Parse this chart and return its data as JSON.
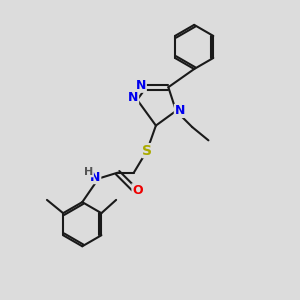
{
  "bg_color": "#dcdcdc",
  "bond_color": "#1a1a1a",
  "bond_width": 1.5,
  "atom_colors": {
    "N": "#0000ee",
    "O": "#ee0000",
    "S": "#aaaa00",
    "C": "#1a1a1a",
    "H": "#555555"
  },
  "font_size_atom": 9,
  "font_size_small": 7.5
}
